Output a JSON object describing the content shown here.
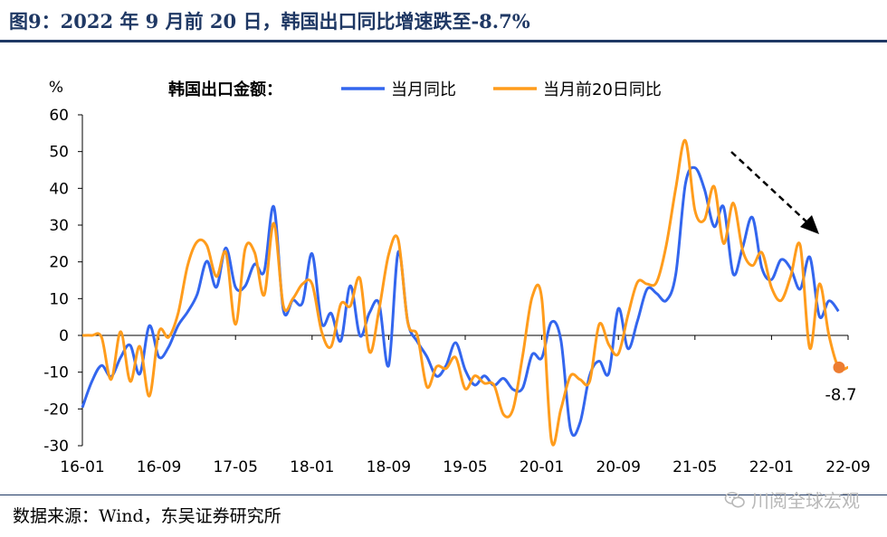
{
  "header": {
    "title": "图9：2022 年 9 月前 20 日，韩国出口同比增速跌至-8.7%"
  },
  "footer": {
    "source": "数据来源：Wind，东吴证券研究所",
    "watermark": "川阅全球宏观"
  },
  "colors": {
    "series_monthly": "#3366ee",
    "series_first20": "#ff9c1c",
    "end_marker": "#ed7d31",
    "title": "#1f3864"
  },
  "chart_data": {
    "type": "line",
    "unit_label": "%",
    "legend_title": "韩国出口金额：",
    "legend_position": "top",
    "ylim": [
      -30,
      60
    ],
    "yticks": [
      -30,
      -20,
      -10,
      0,
      10,
      20,
      30,
      40,
      50,
      60
    ],
    "x_tick_labels": [
      "16-01",
      "16-09",
      "17-05",
      "18-01",
      "18-09",
      "19-05",
      "20-01",
      "20-09",
      "21-05",
      "22-01",
      "22-09"
    ],
    "x": [
      "16-01",
      "16-02",
      "16-03",
      "16-04",
      "16-05",
      "16-06",
      "16-07",
      "16-08",
      "16-09",
      "16-10",
      "16-11",
      "16-12",
      "17-01",
      "17-02",
      "17-03",
      "17-04",
      "17-05",
      "17-06",
      "17-07",
      "17-08",
      "17-09",
      "17-10",
      "17-11",
      "17-12",
      "18-01",
      "18-02",
      "18-03",
      "18-04",
      "18-05",
      "18-06",
      "18-07",
      "18-08",
      "18-09",
      "18-10",
      "18-11",
      "18-12",
      "19-01",
      "19-02",
      "19-03",
      "19-04",
      "19-05",
      "19-06",
      "19-07",
      "19-08",
      "19-09",
      "19-10",
      "19-11",
      "19-12",
      "20-01",
      "20-02",
      "20-03",
      "20-04",
      "20-05",
      "20-06",
      "20-07",
      "20-08",
      "20-09",
      "20-10",
      "20-11",
      "20-12",
      "21-01",
      "21-02",
      "21-03",
      "21-04",
      "21-05",
      "21-06",
      "21-07",
      "21-08",
      "21-09",
      "21-10",
      "21-11",
      "21-12",
      "22-01",
      "22-02",
      "22-03",
      "22-04",
      "22-05",
      "22-06",
      "22-07",
      "22-08",
      "22-09"
    ],
    "series": [
      {
        "name": "当月同比",
        "values": [
          -19.6,
          -12.5,
          -8.2,
          -11.2,
          -6.0,
          -2.7,
          -10.5,
          2.6,
          -5.9,
          -3.2,
          2.7,
          6.4,
          11.2,
          20.2,
          13.1,
          23.8,
          13.1,
          13.4,
          19.4,
          17.4,
          35.0,
          6.9,
          9.6,
          8.9,
          22.2,
          3.3,
          6.0,
          -1.5,
          13.5,
          -0.1,
          6.2,
          8.7,
          -8.2,
          22.7,
          3.6,
          -1.7,
          -5.8,
          -11.1,
          -8.2,
          -2.0,
          -9.4,
          -13.5,
          -11.0,
          -13.6,
          -11.7,
          -14.7,
          -14.3,
          -5.2,
          -6.1,
          3.6,
          -1.4,
          -25.5,
          -23.7,
          -10.9,
          -7.0,
          -10.3,
          7.3,
          -3.6,
          4.0,
          12.6,
          11.4,
          9.5,
          16.6,
          41.1,
          45.6,
          39.7,
          29.6,
          34.9,
          16.7,
          24.1,
          32.1,
          18.3,
          15.2,
          20.6,
          18.2,
          12.6,
          21.3,
          5.2,
          9.4,
          6.6,
          null
        ]
      },
      {
        "name": "当月前20日同比",
        "values": [
          0.0,
          0.0,
          -0.5,
          -12.0,
          1.0,
          -12.5,
          -3.0,
          -16.5,
          1.0,
          -0.5,
          6.0,
          19.0,
          25.5,
          24.5,
          16.0,
          22.5,
          3.0,
          23.5,
          22.5,
          11.0,
          30.5,
          8.0,
          10.0,
          14.0,
          14.0,
          1.0,
          -3.0,
          8.5,
          8.0,
          15.5,
          -4.5,
          7.0,
          22.0,
          26.0,
          3.5,
          0.0,
          -14.0,
          -8.5,
          -9.0,
          -6.0,
          -14.5,
          -11.0,
          -13.0,
          -13.5,
          -21.5,
          -20.0,
          -5.5,
          10.5,
          10.0,
          -28.5,
          -20.0,
          -11.0,
          -12.0,
          -12.5,
          3.0,
          -2.5,
          -5.0,
          5.5,
          14.5,
          14.0,
          14.5,
          24.5,
          40.0,
          53.0,
          34.0,
          31.5,
          40.5,
          25.0,
          36.0,
          23.0,
          19.0,
          22.5,
          13.0,
          9.5,
          16.0,
          24.5,
          -3.5,
          14.0,
          0.0,
          -8.7,
          -8.7
        ]
      }
    ],
    "annotation": {
      "label": "-8.7",
      "value": -8.7,
      "at": "22-09"
    }
  }
}
